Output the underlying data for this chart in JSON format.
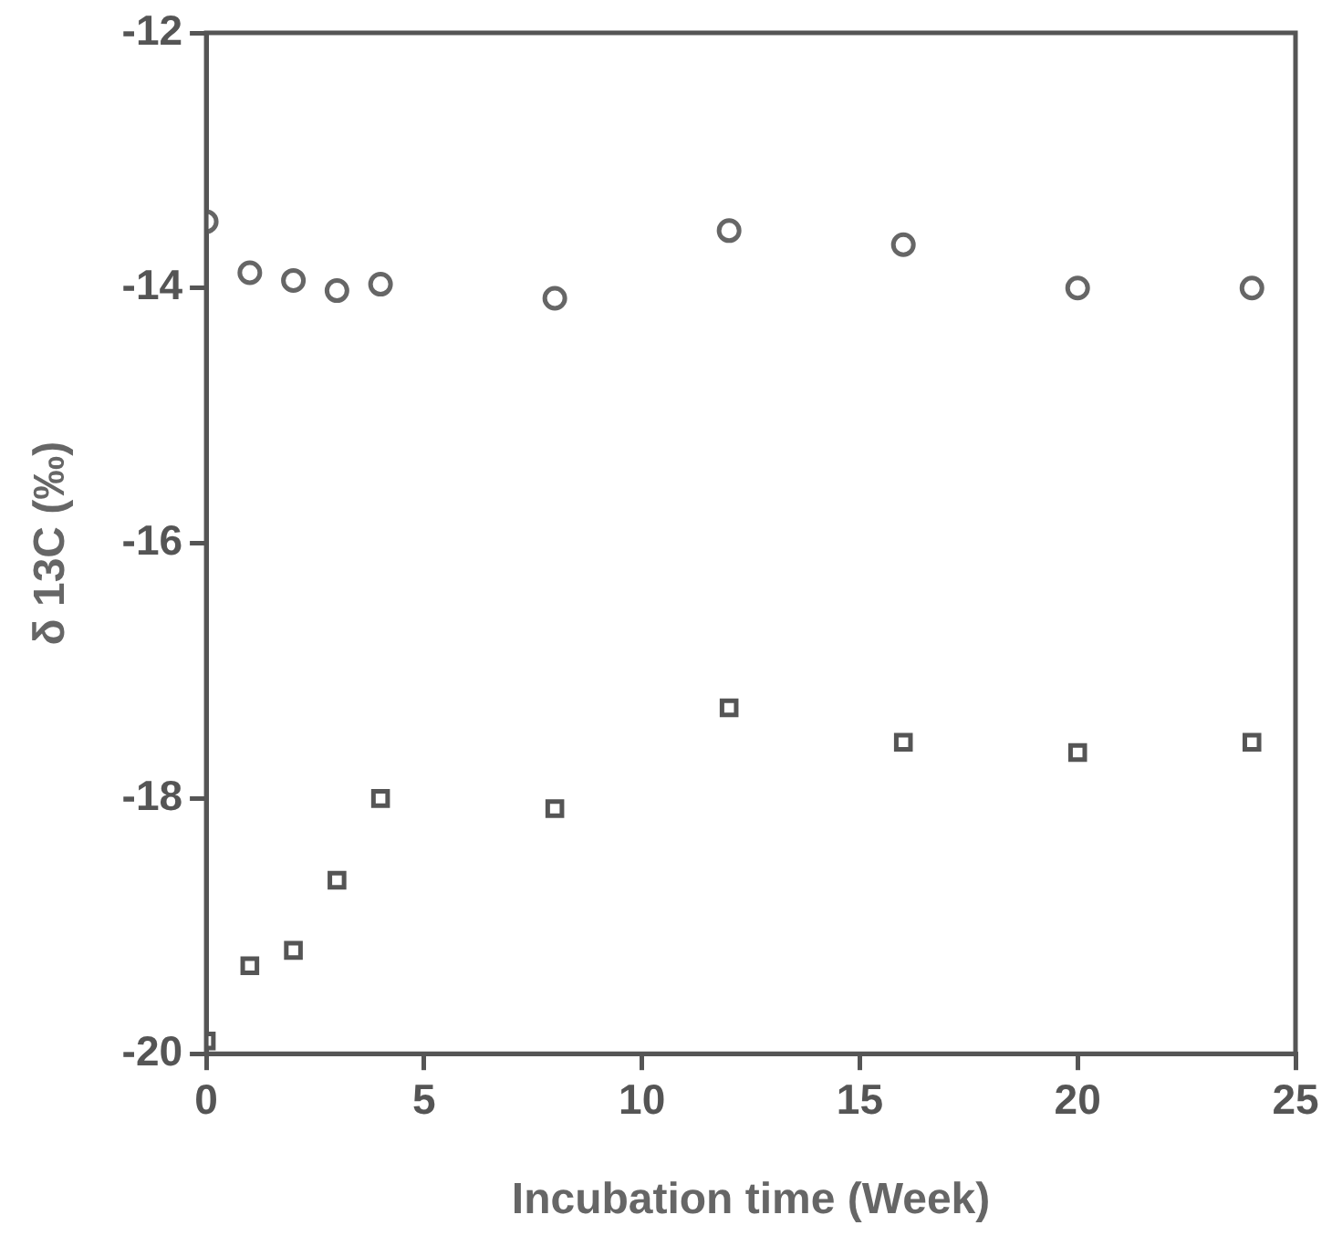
{
  "chart_data": {
    "type": "scatter",
    "xlabel": "Incubation time (Week)",
    "ylabel": "δ 13C (‰)",
    "x": [
      0,
      1,
      2,
      3,
      4,
      8,
      12,
      16,
      20,
      24
    ],
    "series": [
      {
        "color": "#666666",
        "marker": "circle",
        "values": [
          -13.48,
          -13.88,
          -13.94,
          -14.02,
          -13.97,
          -14.08,
          -13.55,
          -13.66,
          -14.0,
          -14.0
        ]
      },
      {
        "color": "#555555",
        "marker": "square",
        "values": [
          -19.9,
          -19.31,
          -19.19,
          -18.64,
          -18.0,
          -18.08,
          -17.29,
          -17.56,
          -17.64,
          -17.56
        ]
      }
    ],
    "xlim": [
      0,
      25
    ],
    "xticks": [
      0,
      5,
      10,
      15,
      20,
      25
    ],
    "ylim": [
      -20,
      -12
    ],
    "yticks": [
      -20,
      -18,
      -16,
      -14,
      -12
    ],
    "grid": false,
    "legend": false
  }
}
